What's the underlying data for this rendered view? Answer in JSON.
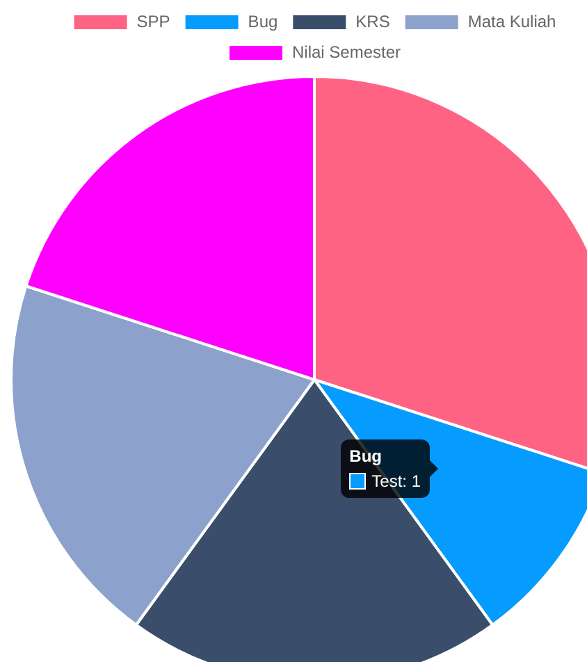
{
  "chart_data": {
    "type": "pie",
    "categories": [
      "SPP",
      "Bug",
      "KRS",
      "Mata Kuliah",
      "Nilai Semester"
    ],
    "values": [
      30,
      10,
      20,
      20,
      20
    ],
    "colors": [
      "#ff6384",
      "#069bff",
      "#3a4d6b",
      "#8ca2cc",
      "#ff00ff"
    ],
    "legend": "top",
    "annotations": [
      {
        "text": "Test: 1",
        "x": "Bug"
      }
    ]
  }
}
